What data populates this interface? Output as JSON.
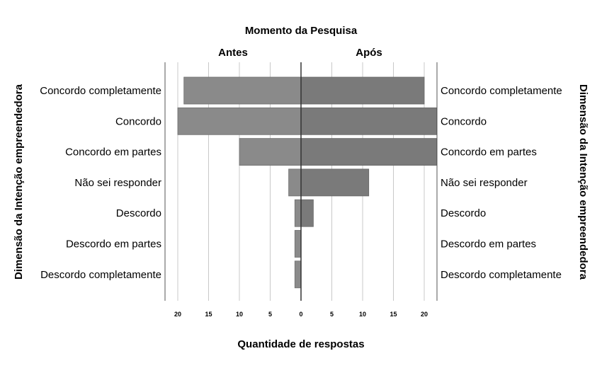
{
  "chart_data": {
    "type": "bar",
    "title": "Momento da Pesquisa",
    "panels": [
      "Antes",
      "Após"
    ],
    "xlabel": "Quantidade de respostas",
    "ylabel_left": "Dimensão da Intenção empreendedora",
    "ylabel_right": "Dimensão da Intenção empreendedora",
    "categories": [
      "Concordo completamente",
      "Concordo",
      "Concordo em partes",
      "Não sei responder",
      "Descordo",
      "Descordo em partes",
      "Descordo completamente"
    ],
    "series": [
      {
        "name": "Antes",
        "values": [
          19,
          20,
          10,
          2,
          1,
          1,
          1
        ],
        "color": "#8a8a8a"
      },
      {
        "name": "Após",
        "values": [
          20,
          22,
          22,
          11,
          2,
          0,
          0
        ],
        "color": "#7a7a7a"
      }
    ],
    "xlim": [
      0,
      22
    ],
    "xticks": [
      "20",
      "15",
      "10",
      "5",
      "0",
      "5",
      "10",
      "15",
      "20"
    ],
    "grid": true
  }
}
